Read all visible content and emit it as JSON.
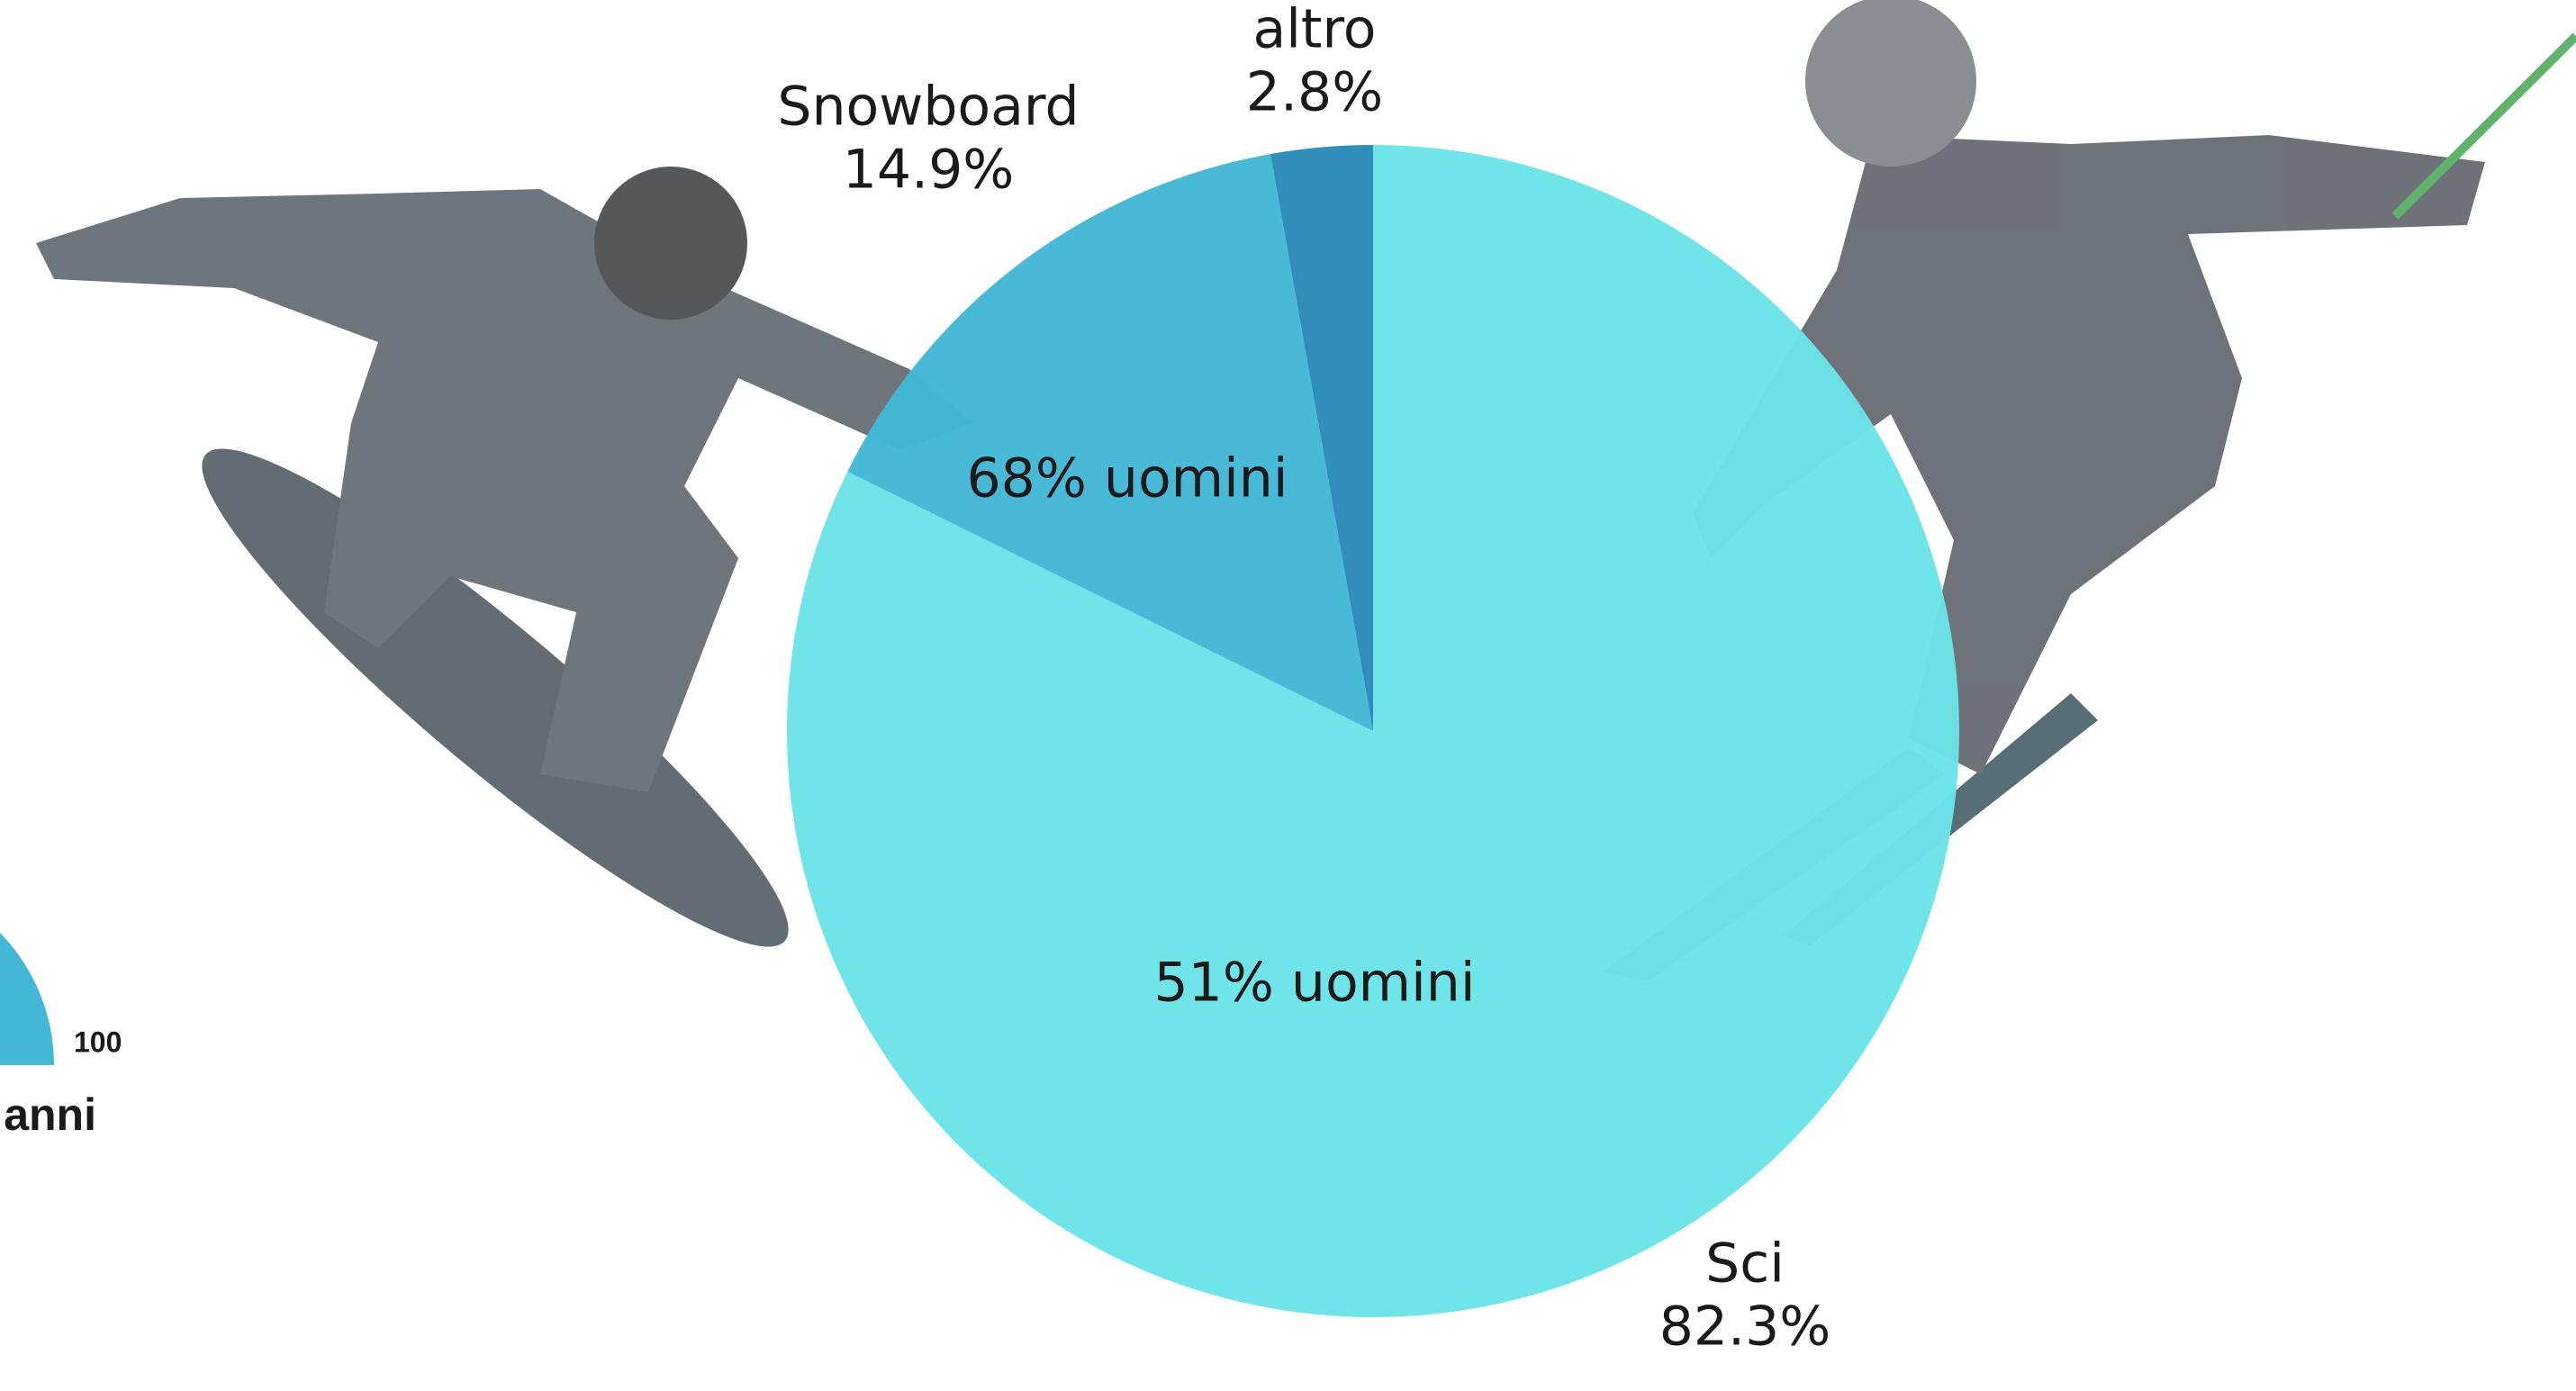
{
  "chart_data": [
    {
      "type": "pie",
      "categories": [
        "Sci",
        "Snowboard",
        "altro"
      ],
      "values": [
        82.3,
        14.9,
        2.8
      ],
      "value_labels": [
        "82.3%",
        "14.9%",
        "2.8%"
      ],
      "colors": [
        "#6ae3e8",
        "#42b8d6",
        "#2a8ab8"
      ],
      "annotations": [
        "51% uomini",
        "68% uomini"
      ]
    },
    {
      "type": "gauge",
      "label": "anni",
      "ticks": [
        100
      ],
      "color": "#42b8d6"
    }
  ]
}
